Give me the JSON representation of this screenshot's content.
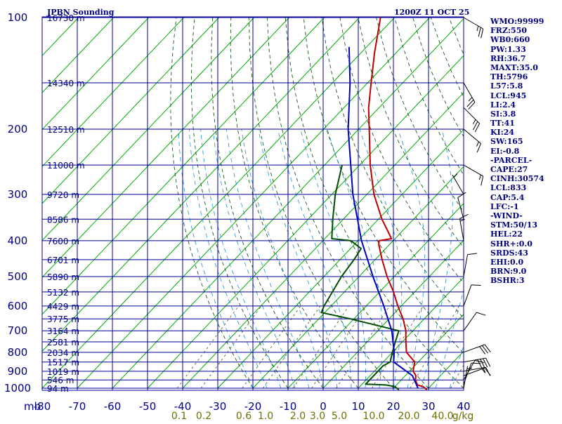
{
  "header": {
    "title": "JPBN Sounding",
    "timestamp": "1200Z 11 OCT 25"
  },
  "indices": [
    "WMO:99999",
    "FRZ:550",
    "WB0:660",
    "PW:1.33",
    "RH:36.7",
    "MAXT:35.0",
    "TH:5796",
    "L57:5.8",
    "LCL:945",
    "LI:2.4",
    "SI:3.8",
    "TT:41",
    "KI:24",
    "SW:165",
    "EI:-0.8",
    "-PARCEL-",
    "CAPE:27",
    "CINH:30574",
    "LCL:833",
    "CAP:5.4",
    "LFC:-1",
    "-WIND-",
    "STM:50/13",
    "HEL:22",
    "SHR+:0.0",
    "SRDS:43",
    "EHI:0.0",
    "BRN:9.0",
    "BSHR:3"
  ],
  "colors": {
    "grid": "#000099",
    "isotherm": "#00aa00",
    "dry_adiabat": "#1a5a1a",
    "moist_adiabat": "#1f8fd6",
    "temperature": "#c00000",
    "dewpoint": "#004d00",
    "parcel": "#0000c0",
    "wind_barb": "#000000"
  },
  "chart_data": {
    "type": "line",
    "title": "JPBN Sounding",
    "pressure_levels": [
      100,
      200,
      300,
      400,
      500,
      600,
      700,
      800,
      900,
      1000
    ],
    "pressure_unit": "mb",
    "temperature_ticks": [
      -80,
      -70,
      -60,
      -50,
      -40,
      -30,
      -20,
      -10,
      0,
      10,
      20,
      30,
      40
    ],
    "xlim": [
      -80,
      40
    ],
    "ylim": [
      1000,
      100
    ],
    "log_pressure": true,
    "mixing_ratio_labels": [
      "0.1",
      "0.2",
      "0.6",
      "1.0",
      "2.0",
      "3.0",
      "5.0",
      "10.0",
      "20.0",
      "40.0",
      "g/kg"
    ],
    "mixing_ratio_values": [
      0.1,
      0.2,
      0.6,
      1.0,
      2.0,
      3.0,
      5.0,
      10.0,
      20.0,
      40.0
    ],
    "height_labels": [
      {
        "p": 100,
        "text": "16730 m"
      },
      {
        "p": 150,
        "text": "14340 m"
      },
      {
        "p": 200,
        "text": "12510 m"
      },
      {
        "p": 250,
        "text": "11000 m"
      },
      {
        "p": 300,
        "text": "9720 m"
      },
      {
        "p": 350,
        "text": "8586 m"
      },
      {
        "p": 400,
        "text": "7600 m"
      },
      {
        "p": 450,
        "text": "6701 m"
      },
      {
        "p": 500,
        "text": "5890 m"
      },
      {
        "p": 550,
        "text": "5132 m"
      },
      {
        "p": 600,
        "text": "4429 m"
      },
      {
        "p": 650,
        "text": "3775 m"
      },
      {
        "p": 700,
        "text": "3164 m"
      },
      {
        "p": 750,
        "text": "2581 m"
      },
      {
        "p": 800,
        "text": "2034 m"
      },
      {
        "p": 850,
        "text": "1517 m"
      },
      {
        "p": 900,
        "text": "1019 m"
      },
      {
        "p": 950,
        "text": "546 m"
      },
      {
        "p": 1000,
        "text": "94 m"
      }
    ],
    "series": [
      {
        "key": "temperature",
        "points": [
          [
            1010,
            30
          ],
          [
            1000,
            29
          ],
          [
            990,
            28
          ],
          [
            980,
            26
          ],
          [
            950,
            24
          ],
          [
            925,
            23
          ],
          [
            900,
            21
          ],
          [
            850,
            19
          ],
          [
            800,
            14
          ],
          [
            750,
            11
          ],
          [
            700,
            8
          ],
          [
            650,
            4
          ],
          [
            600,
            -1
          ],
          [
            550,
            -6
          ],
          [
            500,
            -12
          ],
          [
            450,
            -18
          ],
          [
            410,
            -23
          ],
          [
            400,
            -24
          ],
          [
            395,
            -21
          ],
          [
            350,
            -29
          ],
          [
            300,
            -38
          ],
          [
            250,
            -47
          ],
          [
            200,
            -57
          ],
          [
            175,
            -63
          ],
          [
            150,
            -69
          ],
          [
            125,
            -76
          ],
          [
            100,
            -84
          ]
        ]
      },
      {
        "key": "dewpoint",
        "points": [
          [
            1010,
            22
          ],
          [
            1000,
            21
          ],
          [
            990,
            20
          ],
          [
            980,
            17
          ],
          [
            975,
            11
          ],
          [
            900,
            11
          ],
          [
            870,
            11
          ],
          [
            850,
            12
          ],
          [
            800,
            10
          ],
          [
            750,
            8
          ],
          [
            700,
            6
          ],
          [
            650,
            -11
          ],
          [
            625,
            -21
          ],
          [
            600,
            -22
          ],
          [
            500,
            -25
          ],
          [
            450,
            -26
          ],
          [
            420,
            -27
          ],
          [
            400,
            -32
          ],
          [
            395,
            -38
          ],
          [
            350,
            -43
          ],
          [
            300,
            -49
          ],
          [
            250,
            -55
          ]
        ]
      },
      {
        "key": "parcel",
        "points": [
          [
            1000,
            27
          ],
          [
            925,
            22
          ],
          [
            850,
            13
          ],
          [
            800,
            10.5
          ],
          [
            700,
            4
          ],
          [
            600,
            -5
          ],
          [
            500,
            -16
          ],
          [
            400,
            -29
          ],
          [
            300,
            -44
          ],
          [
            200,
            -63
          ],
          [
            150,
            -75
          ],
          [
            120,
            -85
          ]
        ]
      }
    ],
    "wind_barbs": [
      {
        "p": 1000,
        "dir": 190,
        "spd": 5
      },
      {
        "p": 975,
        "dir": 200,
        "spd": 10
      },
      {
        "p": 950,
        "dir": 210,
        "spd": 10
      },
      {
        "p": 925,
        "dir": 250,
        "spd": 15
      },
      {
        "p": 900,
        "dir": 260,
        "spd": 15
      },
      {
        "p": 850,
        "dir": 260,
        "spd": 40
      },
      {
        "p": 800,
        "dir": 250,
        "spd": 30
      },
      {
        "p": 700,
        "dir": 215,
        "spd": 10
      },
      {
        "p": 600,
        "dir": 200,
        "spd": 10
      },
      {
        "p": 500,
        "dir": 190,
        "spd": 10
      },
      {
        "p": 400,
        "dir": 170,
        "spd": 15
      },
      {
        "p": 350,
        "dir": 165,
        "spd": 10
      },
      {
        "p": 300,
        "dir": 150,
        "spd": 5
      },
      {
        "p": 250,
        "dir": 300,
        "spd": 15
      },
      {
        "p": 200,
        "dir": 310,
        "spd": 15
      },
      {
        "p": 175,
        "dir": 315,
        "spd": 25
      },
      {
        "p": 150,
        "dir": 330,
        "spd": 25
      },
      {
        "p": 100,
        "dir": 300,
        "spd": 25
      }
    ]
  }
}
